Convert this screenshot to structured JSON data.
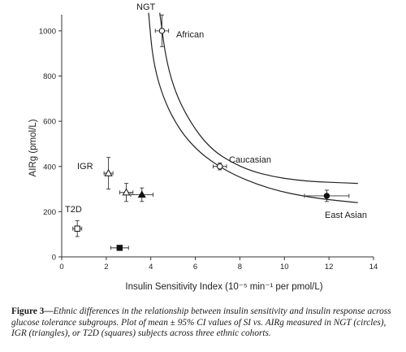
{
  "chart_data": {
    "type": "scatter",
    "xlabel": "Insulin Sensitivity Index (10⁻⁵ min⁻¹ per pmol/L)",
    "ylabel": "AIRg (pmol/L)",
    "xlim": [
      0,
      14
    ],
    "ylim": [
      0,
      1000
    ],
    "x_ticks": [
      "0",
      "2",
      "4",
      "6",
      "8",
      "10",
      "12",
      "14"
    ],
    "y_ticks": [
      "0",
      "200",
      "400",
      "600",
      "800",
      "1000"
    ],
    "grid": false,
    "group_labels": {
      "ngt": "NGT",
      "igr": "IGR",
      "t2d": "T2D"
    },
    "cohort_labels": {
      "african": "African",
      "caucasian": "Caucasian",
      "east_asian": "East Asian"
    },
    "points": [
      {
        "group": "NGT",
        "cohort": "African",
        "marker": "circle-open",
        "x": 4.5,
        "y": 1000,
        "x_err": 0.3,
        "y_err": 70
      },
      {
        "group": "NGT",
        "cohort": "Caucasian",
        "marker": "circle-open",
        "x": 7.1,
        "y": 400,
        "x_err": 0.3,
        "y_err": 15
      },
      {
        "group": "NGT",
        "cohort": "East Asian",
        "marker": "circle-filled",
        "x": 11.9,
        "y": 270,
        "x_err": 1.0,
        "y_err": 25
      },
      {
        "group": "IGR",
        "cohort": "African",
        "marker": "triangle-open",
        "x": 2.1,
        "y": 370,
        "x_err": 0.2,
        "y_err": 70
      },
      {
        "group": "IGR",
        "cohort": "Caucasian",
        "marker": "triangle-open",
        "x": 2.9,
        "y": 285,
        "x_err": 0.3,
        "y_err": 40
      },
      {
        "group": "IGR",
        "cohort": "East Asian",
        "marker": "triangle-filled",
        "x": 3.6,
        "y": 275,
        "x_err": 0.5,
        "y_err": 30
      },
      {
        "group": "T2D",
        "cohort": "African",
        "marker": "square-open",
        "x": 0.7,
        "y": 125,
        "x_err": 0.2,
        "y_err": 35
      },
      {
        "group": "T2D",
        "cohort": "East Asian",
        "marker": "square-filled",
        "x": 2.6,
        "y": 40,
        "x_err": 0.4,
        "y_err": 10
      }
    ],
    "curves": [
      {
        "name": "upper",
        "points": [
          [
            4.4,
            1080
          ],
          [
            4.7,
            860
          ],
          [
            5.2,
            700
          ],
          [
            6.0,
            560
          ],
          [
            6.8,
            470
          ],
          [
            7.6,
            420
          ],
          [
            8.5,
            380
          ],
          [
            9.5,
            355
          ],
          [
            10.5,
            340
          ],
          [
            11.5,
            332
          ],
          [
            12.5,
            328
          ],
          [
            13.3,
            325
          ]
        ]
      },
      {
        "name": "lower",
        "points": [
          [
            3.9,
            1080
          ],
          [
            4.1,
            860
          ],
          [
            4.6,
            690
          ],
          [
            5.3,
            560
          ],
          [
            6.1,
            470
          ],
          [
            6.9,
            410
          ],
          [
            7.8,
            360
          ],
          [
            8.8,
            320
          ],
          [
            9.8,
            290
          ],
          [
            10.8,
            270
          ],
          [
            11.8,
            255
          ],
          [
            12.8,
            245
          ],
          [
            13.3,
            240
          ]
        ]
      }
    ]
  },
  "caption": {
    "label": "Figure 3—",
    "text": "Ethnic differences in the relationship between insulin sensitivity and insulin response across glucose tolerance subgroups. Plot of mean ± 95% CI values of SI vs. AIRg measured in NGT (circles), IGR (triangles), or T2D (squares) subjects across three ethnic cohorts."
  }
}
